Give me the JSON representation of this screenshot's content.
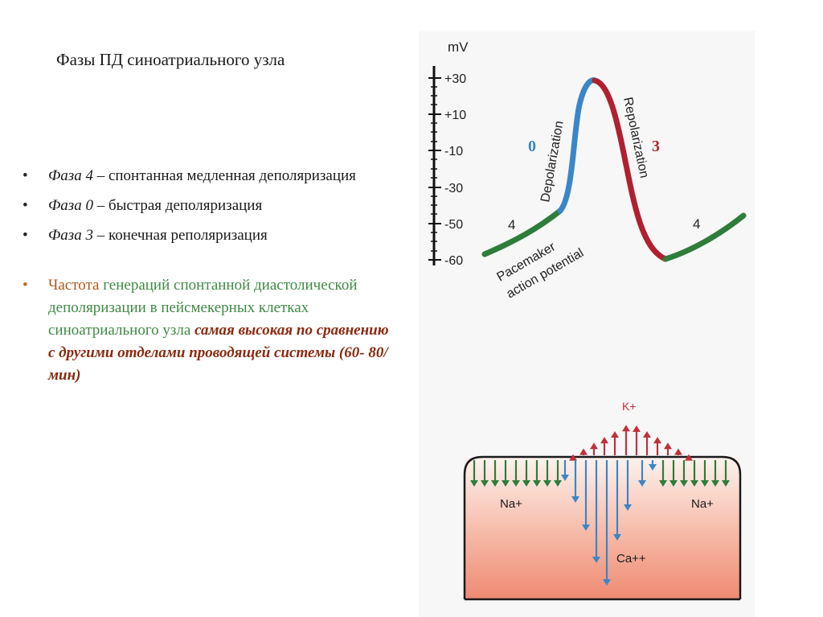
{
  "slide": {
    "title": "Фазы ПД синоатриального узла",
    "bullets": [
      {
        "phase": "Фаза 4",
        "dash": " – ",
        "desc": "спонтанная медленная деполяризация"
      },
      {
        "phase": "Фаза 0",
        "dash": " – ",
        "desc": "быстрая деполяризация"
      },
      {
        "phase": "Фаза 3",
        "dash": " – ",
        "desc": "конечная реполяризация"
      }
    ],
    "frequency": {
      "part1": "Частота ",
      "part2": "генераций спонтанной диастолической деполяризации в пейсмекерных клетках синоатриального узла",
      "part3": " самая высокая по сравнению с другими отделами проводящей системы (60- 80/мин)"
    }
  },
  "graph": {
    "unit": "mV",
    "ticks": [
      "+30",
      "+10",
      "-10",
      "-30",
      "-50",
      "-60"
    ],
    "labels": {
      "depolarization": "Depolarization",
      "repolarization": "Repolarization",
      "phase0": "0",
      "phase3": "3",
      "phase4_left": "4",
      "phase4_right": "4",
      "pacemaker_line1": "Pacemaker",
      "pacemaker_line2": "action potential"
    },
    "colors": {
      "phase4": "#2e7d3a",
      "phase0": "#3b86c8",
      "phase3": "#b02030"
    }
  },
  "ions": {
    "k": "K+",
    "na_left": "Na+",
    "na_right": "Na+",
    "ca": "Ca++",
    "colors": {
      "k": "#c0303a",
      "na": "#2e7d3a",
      "ca": "#3b86c8"
    }
  }
}
